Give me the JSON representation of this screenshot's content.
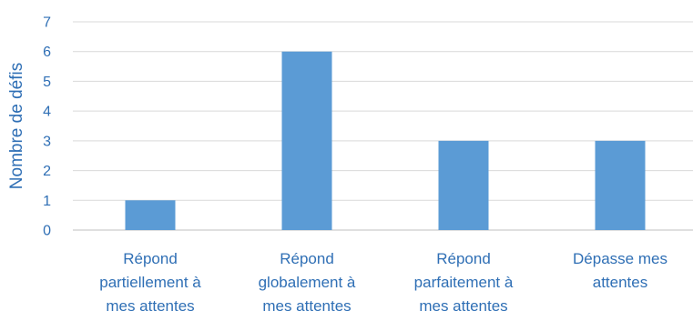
{
  "chart_data": {
    "type": "bar",
    "categories": [
      [
        "Répond",
        "partiellement à",
        "mes attentes"
      ],
      [
        "Répond",
        "globalement à",
        "mes attentes"
      ],
      [
        "Répond",
        "parfaitement à",
        "mes attentes"
      ],
      [
        "Dépasse mes",
        "attentes"
      ]
    ],
    "values": [
      1,
      6,
      3,
      3
    ],
    "ylabel": "Nombre de défis",
    "ylim": [
      0,
      7
    ],
    "yticks": [
      0,
      1,
      2,
      3,
      4,
      5,
      6,
      7
    ],
    "grid": true,
    "legend": "none",
    "bar_color": "#5b9bd5",
    "text_color": "#2f6fb5"
  }
}
